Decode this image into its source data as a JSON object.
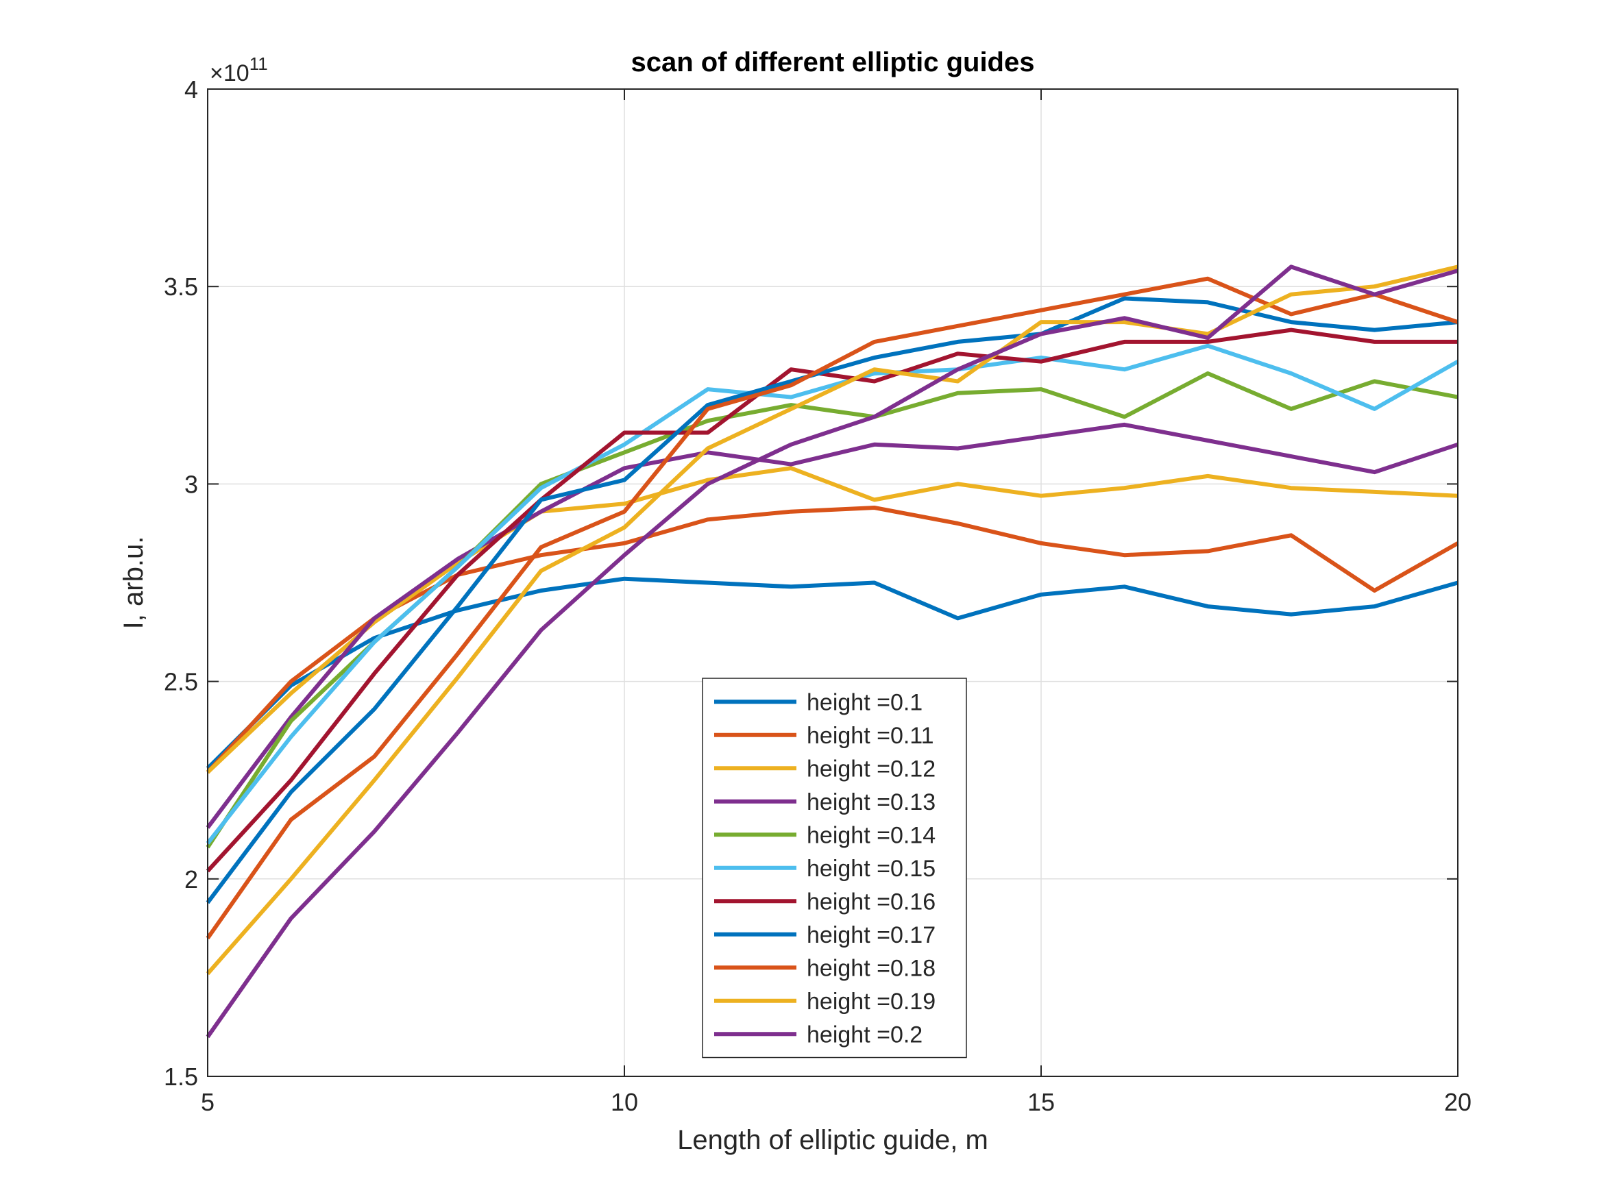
{
  "chart_data": {
    "type": "line",
    "title": "scan of different elliptic guides",
    "xlabel": "Length of elliptic guide, m",
    "ylabel": "I, arb.u.",
    "y_exponent_base": "×10",
    "y_exponent_power": "11",
    "xlim": [
      5,
      20
    ],
    "ylim": [
      1.5,
      4
    ],
    "xticks": [
      5,
      10,
      15,
      20
    ],
    "xtick_labels": [
      "5",
      "10",
      "15",
      "20"
    ],
    "yticks": [
      1.5,
      2,
      2.5,
      3,
      3.5,
      4
    ],
    "ytick_labels": [
      "1.5",
      "2",
      "2.5",
      "3",
      "3.5",
      "4"
    ],
    "grid": true,
    "legend_position": "bottom-center",
    "x": [
      5,
      6,
      7,
      8,
      9,
      10,
      11,
      12,
      13,
      14,
      15,
      16,
      17,
      18,
      19,
      20
    ],
    "series": [
      {
        "name": "height =0.1",
        "color": "#0072BD",
        "values": [
          2.28,
          2.49,
          2.61,
          2.68,
          2.73,
          2.76,
          2.75,
          2.74,
          2.75,
          2.66,
          2.72,
          2.74,
          2.69,
          2.67,
          2.69,
          2.75
        ]
      },
      {
        "name": "height =0.11",
        "color": "#D95319",
        "values": [
          2.27,
          2.5,
          2.66,
          2.77,
          2.82,
          2.85,
          2.91,
          2.93,
          2.94,
          2.9,
          2.85,
          2.82,
          2.83,
          2.87,
          2.73,
          2.85
        ]
      },
      {
        "name": "height =0.12",
        "color": "#EDB120",
        "values": [
          2.27,
          2.47,
          2.65,
          2.8,
          2.93,
          2.95,
          3.01,
          3.04,
          2.96,
          3.0,
          2.97,
          2.99,
          3.02,
          2.99,
          2.98,
          2.97
        ]
      },
      {
        "name": "height =0.13",
        "color": "#7E2F8E",
        "values": [
          2.13,
          2.41,
          2.66,
          2.81,
          2.93,
          3.04,
          3.08,
          3.05,
          3.1,
          3.09,
          3.12,
          3.15,
          3.11,
          3.07,
          3.03,
          3.1
        ]
      },
      {
        "name": "height =0.14",
        "color": "#77AC30",
        "values": [
          2.08,
          2.4,
          2.6,
          2.79,
          3.0,
          3.08,
          3.16,
          3.2,
          3.17,
          3.23,
          3.24,
          3.17,
          3.28,
          3.19,
          3.26,
          3.22
        ]
      },
      {
        "name": "height =0.15",
        "color": "#4DBEEE",
        "values": [
          2.09,
          2.36,
          2.6,
          2.79,
          2.99,
          3.1,
          3.24,
          3.22,
          3.28,
          3.29,
          3.32,
          3.29,
          3.35,
          3.28,
          3.19,
          3.31
        ]
      },
      {
        "name": "height =0.16",
        "color": "#A2142F",
        "values": [
          2.02,
          2.25,
          2.52,
          2.77,
          2.96,
          3.13,
          3.13,
          3.29,
          3.26,
          3.33,
          3.31,
          3.36,
          3.36,
          3.39,
          3.36,
          3.36
        ]
      },
      {
        "name": "height =0.17",
        "color": "#0072BD",
        "values": [
          1.94,
          2.22,
          2.43,
          2.69,
          2.96,
          3.01,
          3.2,
          3.26,
          3.32,
          3.36,
          3.38,
          3.47,
          3.46,
          3.41,
          3.39,
          3.41
        ]
      },
      {
        "name": "height =0.18",
        "color": "#D95319",
        "values": [
          1.85,
          2.15,
          2.31,
          2.57,
          2.84,
          2.93,
          3.19,
          3.25,
          3.36,
          3.4,
          3.44,
          3.48,
          3.52,
          3.43,
          3.48,
          3.41
        ]
      },
      {
        "name": "height =0.19",
        "color": "#EDB120",
        "values": [
          1.76,
          2.0,
          2.25,
          2.51,
          2.78,
          2.89,
          3.09,
          3.19,
          3.29,
          3.26,
          3.41,
          3.41,
          3.38,
          3.48,
          3.5,
          3.55
        ]
      },
      {
        "name": "height =0.2",
        "color": "#7E2F8E",
        "values": [
          1.6,
          1.9,
          2.12,
          2.37,
          2.63,
          2.82,
          3.0,
          3.1,
          3.17,
          3.29,
          3.38,
          3.42,
          3.37,
          3.55,
          3.48,
          3.54
        ]
      }
    ]
  }
}
